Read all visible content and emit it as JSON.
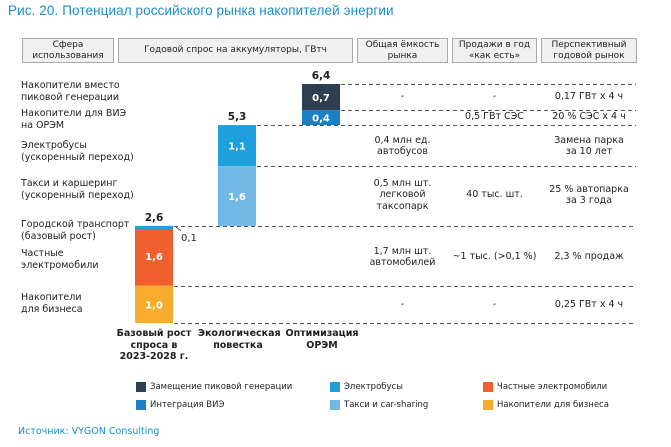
{
  "title": "Рис. 20. Потенциал российского рынка накопителей энергии",
  "headers": [
    "Сфера\nиспользования",
    "Годовой спрос на аккумуляторы, ГВтч",
    "Общая ёмкость\nрынка",
    "Продажи в год\n«как есть»",
    "Перспективный\nгодовой рынок"
  ],
  "rows": [
    {
      "label": "Накопители вместо\nпиковой генерации",
      "capacity": "-",
      "sales": "-",
      "market": "0,17 ГВт х 4 ч"
    },
    {
      "label": "Накопители для ВИЭ\nна ОРЭМ",
      "capacity": "",
      "sales": "0,5 ГВт СЭС",
      "market": "20 % СЭС х 4 ч"
    },
    {
      "label": "Электробусы\n(ускоренный переход)",
      "capacity": "0,4 млн ед.\nавтобусов",
      "sales": "",
      "market": "Замена парка\nза 10 лет"
    },
    {
      "label": "Такси и каршеринг\n(ускоренный переход)",
      "capacity": "0,5 млн шт.\nлегковой\nтаксопарк",
      "sales": "40 тыс. шт.",
      "market": "25 % автопарка\nза 3 года"
    },
    {
      "label": "Городской транспорт\n(базовый рост)",
      "capacity": "",
      "sales": "",
      "market": ""
    },
    {
      "label": "Частные\nэлектромобили",
      "capacity": "1,7 млн шт.\nавтомобилей",
      "sales": "~1 тыс. (>0,1 %)",
      "market": "2,3 % продаж"
    },
    {
      "label": "Накопители\nдля бизнеса",
      "capacity": "-",
      "sales": "-",
      "market": "0,25 ГВт х 4 ч"
    }
  ],
  "chart_data": {
    "type": "bar",
    "subtype": "waterfall-stacked",
    "title": "Годовой спрос на аккумуляторы, ГВтч",
    "categories": [
      "Базовый рост\nспроса в\n2023-2028 г.",
      "Экологическая\nповестка",
      "Оптимизация\nОРЭМ"
    ],
    "ylim": [
      0,
      6.4
    ],
    "grid": false,
    "legend_position": "bottom",
    "segments": [
      {
        "category": 0,
        "series": "Накопители для бизнеса",
        "base": 0.0,
        "value": 1.0,
        "label": "1,0"
      },
      {
        "category": 0,
        "series": "Частные электромобили",
        "base": 1.0,
        "value": 1.6,
        "label": "1,6"
      },
      {
        "category": 0,
        "series": "Городской транспорт",
        "base": 2.5,
        "value": 0.1,
        "label": "0,1",
        "label_outside": true
      },
      {
        "category": 1,
        "series": "Такси и car-sharing",
        "base": 2.6,
        "value": 1.6,
        "label": "1,6"
      },
      {
        "category": 1,
        "series": "Электробусы",
        "base": 4.2,
        "value": 1.1,
        "label": "1,1"
      },
      {
        "category": 2,
        "series": "Интеграция ВИЭ",
        "base": 5.3,
        "value": 0.4,
        "label": "0,4"
      },
      {
        "category": 2,
        "series": "Замещение пиковой генерации",
        "base": 5.7,
        "value": 0.7,
        "label": "0,7"
      }
    ],
    "totals": [
      {
        "category": 0,
        "value": 2.6,
        "label": "2,6"
      },
      {
        "category": 1,
        "value": 5.3,
        "label": "5,3"
      },
      {
        "category": 2,
        "value": 6.4,
        "label": "6,4"
      }
    ],
    "series": [
      {
        "name": "Замещение пиковой генерации",
        "color": "#2d3e50"
      },
      {
        "name": "Интеграция ВИЭ",
        "color": "#1a7fc4"
      },
      {
        "name": "Электробусы",
        "color": "#1ea0dd"
      },
      {
        "name": "Такси и car-sharing",
        "color": "#72b8e4"
      },
      {
        "name": "Частные электромобили",
        "color": "#f0602f"
      },
      {
        "name": "Накопители для бизнеса",
        "color": "#f7ac2e"
      },
      {
        "name": "Городской транспорт",
        "color": "#1ea0dd"
      }
    ]
  },
  "legend": [
    {
      "label": "Замещение пиковой генерации",
      "color": "#2d3e50"
    },
    {
      "label": "Интеграция ВИЭ",
      "color": "#1a7fc4"
    },
    {
      "label": "Электробусы",
      "color": "#1ea0dd"
    },
    {
      "label": "Такси и car-sharing",
      "color": "#72b8e4"
    },
    {
      "label": "Частные электромобили",
      "color": "#f0602f"
    },
    {
      "label": "Накопители для бизнеса",
      "color": "#f7ac2e"
    }
  ],
  "source": "Источник: VYGON Consulting"
}
